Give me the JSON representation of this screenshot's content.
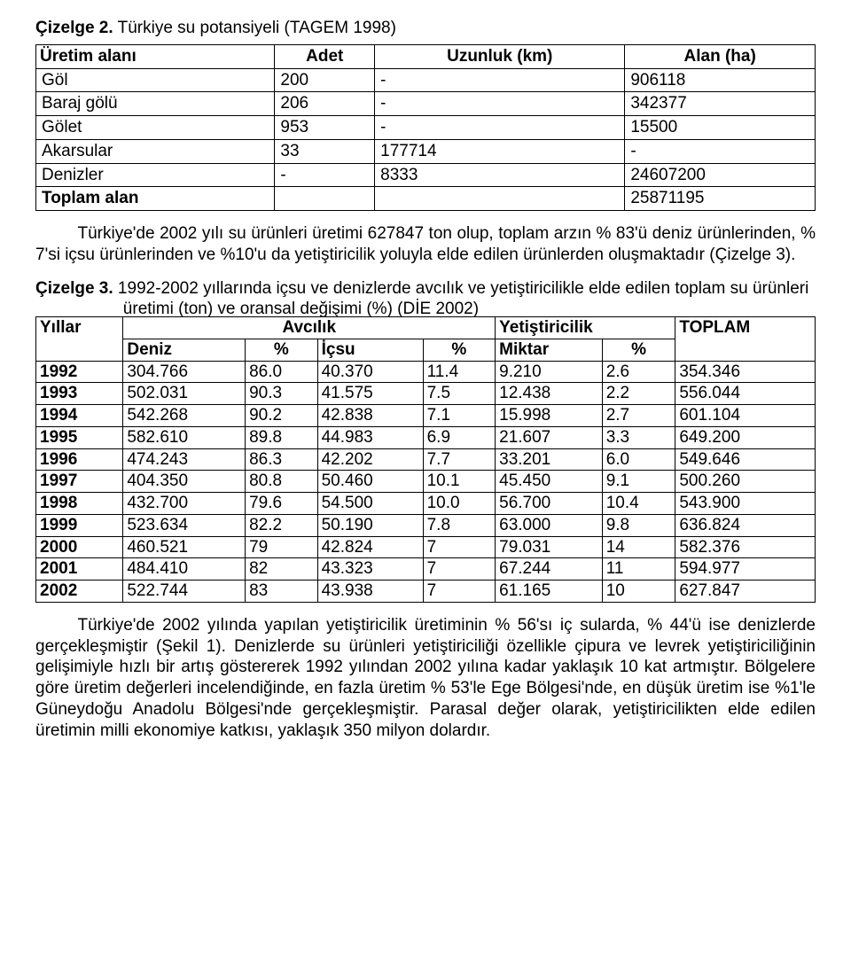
{
  "caption1_prefix": "Çizelge 2.",
  "caption1_text": " Türkiye su potansiyeli (TAGEM 1998)",
  "table1": {
    "headers": [
      "Üretim alanı",
      "Adet",
      "Uzunluk (km)",
      "Alan (ha)"
    ],
    "rows": [
      [
        "Göl",
        "200",
        "-",
        "906118"
      ],
      [
        "Baraj gölü",
        "206",
        "-",
        "342377"
      ],
      [
        "Gölet",
        "953",
        "-",
        "15500"
      ],
      [
        "Akarsular",
        "33",
        "177714",
        "-"
      ],
      [
        "Denizler",
        "-",
        "8333",
        "24607200"
      ]
    ],
    "total_label": "Toplam alan",
    "total_value": "25871195"
  },
  "para1": "Türkiye'de 2002 yılı su ürünleri üretimi 627847 ton olup, toplam arzın %  83'ü deniz ürünlerinden, % 7'si içsu ürünlerinden ve %10'u da yetiştiricilik yoluyla elde edilen ürünlerden oluşmaktadır (Çizelge 3).",
  "caption2_prefix": "Çizelge 3.",
  "caption2_text": " 1992-2002 yıllarında içsu ve denizlerde avcılık ve yetiştiricilikle elde edilen toplam su ürünleri üretimi (ton) ve oransal değişimi (%) (DİE 2002)",
  "table2": {
    "head_row1": [
      "Yıllar",
      "Avcılık",
      "Yetiştiricilik",
      "TOPLAM"
    ],
    "head_row2": [
      "Deniz",
      "%",
      "İçsu",
      "%",
      "Miktar",
      "%"
    ],
    "rows": [
      [
        "1992",
        "304.766",
        "86.0",
        "40.370",
        "11.4",
        "9.210",
        "2.6",
        "354.346"
      ],
      [
        "1993",
        "502.031",
        "90.3",
        "41.575",
        "7.5",
        "12.438",
        "2.2",
        "556.044"
      ],
      [
        "1994",
        "542.268",
        "90.2",
        "42.838",
        "7.1",
        "15.998",
        "2.7",
        "601.104"
      ],
      [
        "1995",
        "582.610",
        "89.8",
        "44.983",
        "6.9",
        "21.607",
        "3.3",
        "649.200"
      ],
      [
        "1996",
        "474.243",
        "86.3",
        "42.202",
        "7.7",
        "33.201",
        "6.0",
        "549.646"
      ],
      [
        "1997",
        "404.350",
        "80.8",
        "50.460",
        "10.1",
        "45.450",
        "9.1",
        "500.260"
      ],
      [
        "1998",
        "432.700",
        "79.6",
        "54.500",
        "10.0",
        "56.700",
        "10.4",
        "543.900"
      ],
      [
        "1999",
        "523.634",
        "82.2",
        "50.190",
        "7.8",
        "63.000",
        "9.8",
        "636.824"
      ],
      [
        "2000",
        "460.521",
        "79",
        "42.824",
        "7",
        "79.031",
        "14",
        "582.376"
      ],
      [
        "2001",
        "484.410",
        "82",
        "43.323",
        "7",
        "67.244",
        "11",
        "594.977"
      ],
      [
        "2002",
        "522.744",
        "83",
        "43.938",
        "7",
        "61.165",
        "10",
        "627.847"
      ]
    ]
  },
  "para2": "Türkiye'de 2002 yılında yapılan yetiştiricilik üretiminin % 56'sı iç sularda, % 44'ü ise denizlerde gerçekleşmiştir (Şekil 1). Denizlerde su ürünleri yetiştiriciliği özellikle çipura ve levrek yetiştiriciliğinin gelişimiyle hızlı bir artış göstererek 1992 yılından 2002 yılına kadar yaklaşık 10 kat artmıştır. Bölgelere göre üretim değerleri incelendiğinde, en fazla üretim % 53'le Ege Bölgesi'nde, en düşük üretim ise %1'le Güneydoğu Anadolu Bölgesi'nde gerçekleşmiştir. Parasal değer olarak, yetiştiricilikten elde edilen üretimin milli ekonomiye katkısı, yaklaşık 350 milyon dolardır."
}
